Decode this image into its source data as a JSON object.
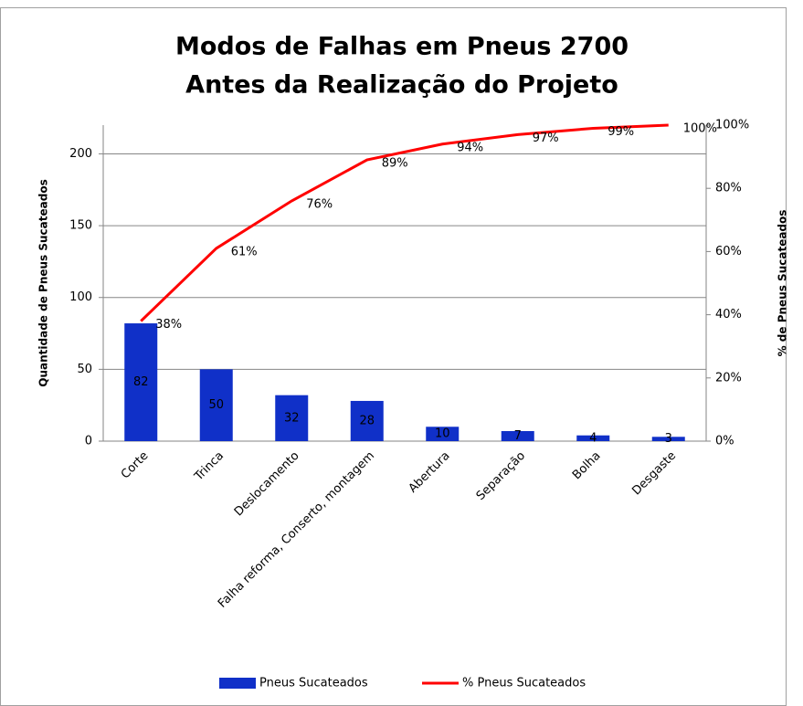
{
  "chart_data": {
    "type": "pareto",
    "title": "Modos de Falhas em Pneus 2700",
    "subtitle": "Antes da Realização do Projeto",
    "y_label": "Quantidade  de Pneus Sucateados",
    "y2_label": "% de Pneus Sucateados",
    "categories": [
      "Corte",
      "Trinca",
      "Deslocamento",
      "Falha reforma, Conserto, montagem",
      "Abertura",
      "Separação",
      "Bolha",
      "Desgaste"
    ],
    "series": [
      {
        "name": "Pneus Sucateados",
        "color": "#1030c8",
        "values": [
          82,
          50,
          32,
          28,
          10,
          7,
          4,
          3
        ]
      },
      {
        "name": "% Pneus Sucateados",
        "color": "#ff0000",
        "axis": "y2",
        "values": [
          38,
          61,
          76,
          89,
          94,
          97,
          99,
          100
        ],
        "value_labels": [
          "38%",
          "61%",
          "76%",
          "89%",
          "94%",
          "97%",
          "99%",
          "100%"
        ]
      }
    ],
    "ylim": [
      0,
      220
    ],
    "yticks": [
      0,
      50,
      100,
      150,
      200
    ],
    "y2lim": [
      0,
      100
    ],
    "y2ticks": [
      {
        "value": 0,
        "label": "0%"
      },
      {
        "value": 20,
        "label": "20%"
      },
      {
        "value": 40,
        "label": "40%"
      },
      {
        "value": 60,
        "label": "60%"
      },
      {
        "value": 80,
        "label": "80%"
      },
      {
        "value": 100,
        "label": "100%"
      }
    ],
    "grid": true,
    "legend": "bottom"
  }
}
